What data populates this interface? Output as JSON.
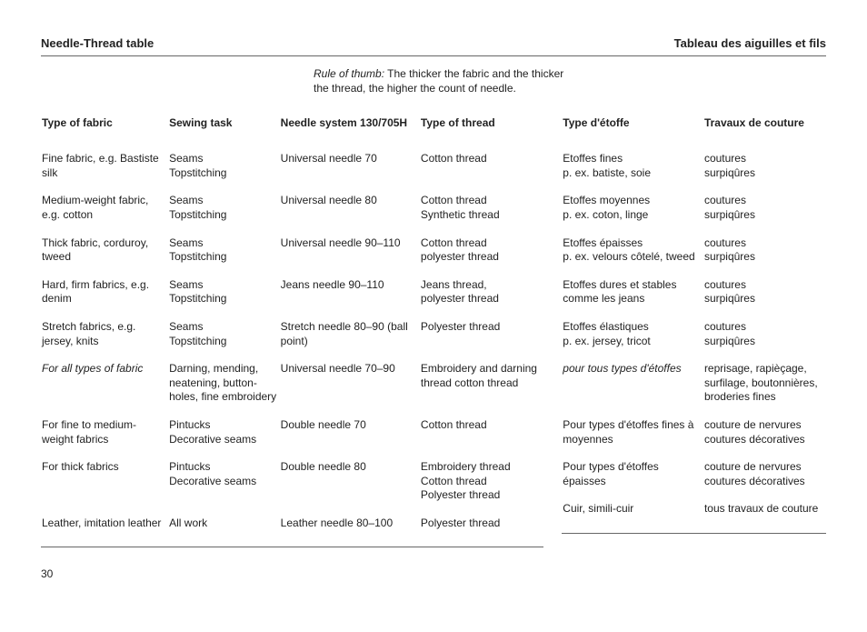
{
  "titles": {
    "left": "Needle-Thread table",
    "right": "Tableau des aiguilles et fils"
  },
  "ruleOfThumb": {
    "label": "Rule of thumb:",
    "text": " The thicker the fabric and the thicker the thread, the higher the count of needle."
  },
  "leftHeaders": {
    "c1": "Type of fabric",
    "c2": "Sewing task",
    "c3": "Needle system 130/705H",
    "c4": "Type of thread"
  },
  "rightHeaders": {
    "c1": "Type d'étoffe",
    "c2": "Travaux de couture"
  },
  "leftRows": [
    {
      "c1": "Fine fabric, e.g. Bastiste silk",
      "c2": "Seams\nTopstitching",
      "c3": "Universal needle 70",
      "c4": "Cotton thread"
    },
    {
      "c1": "Medium-weight fabric, e.g. cotton",
      "c2": "Seams\nTopstitching",
      "c3": "Universal needle 80",
      "c4": "Cotton thread\nSynthetic thread"
    },
    {
      "c1": "Thick fabric, corduroy, tweed",
      "c2": "Seams\nTopstitching",
      "c3": "Universal needle 90–110",
      "c4": "Cotton thread\npolyester thread"
    },
    {
      "c1": "Hard, firm fabrics, e.g. denim",
      "c2": "Seams\nTopstitching",
      "c3": "Jeans needle 90–110",
      "c4": "Jeans thread,\npolyester thread"
    },
    {
      "c1": "Stretch fabrics, e.g. jersey, knits",
      "c2": "Seams\nTopstitching",
      "c3": "Stretch needle 80–90 (ball point)",
      "c4": "Polyester thread"
    },
    {
      "c1": "For all types of fabric",
      "c1italic": true,
      "c2": "Darning, mending, neatening, button-holes, fine embroidery",
      "c3": "Universal needle 70–90",
      "c4": "Embroidery and darning thread cotton thread"
    },
    {
      "c1": "For fine to medium-weight fabrics",
      "c2": "Pintucks\nDecorative seams",
      "c3": "Double needle 70",
      "c4": "Cotton thread"
    },
    {
      "c1": "For thick fabrics",
      "c2": "Pintucks\nDecorative seams",
      "c3": "Double needle 80",
      "c4": "Embroidery thread\nCotton thread\nPolyester thread"
    },
    {
      "c1": "Leather, imitation leather",
      "c2": "All work",
      "c3": "Leather needle 80–100",
      "c4": "Polyester thread"
    }
  ],
  "rightRows": [
    {
      "c1": "Etoffes fines\np. ex. batiste, soie",
      "c2": "coutures\nsurpiqûres"
    },
    {
      "c1": "Etoffes moyennes\np. ex. coton, linge",
      "c2": "coutures\nsurpiqûres"
    },
    {
      "c1": "Etoffes épaisses\np. ex. velours côtelé, tweed",
      "c2": "coutures\nsurpiqûres"
    },
    {
      "c1": "Etoffes dures et stables comme les jeans",
      "c2": "coutures\nsurpiqûres"
    },
    {
      "c1": "Etoffes élastiques\np. ex. jersey, tricot",
      "c2": "coutures\nsurpiqûres"
    },
    {
      "c1": "pour tous types d'étoffes",
      "c1italic": true,
      "c2": "reprisage, rapièçage, surfilage, boutonnières, broderies fines"
    },
    {
      "c1": "Pour types d'étoffes fines à moyennes",
      "c2": "couture de nervures\ncoutures décoratives"
    },
    {
      "c1": "Pour types d'étoffes épaisses",
      "c2": "couture de nervures\ncoutures décoratives"
    },
    {
      "c1": "Cuir, simili-cuir",
      "c2": "tous travaux de couture"
    }
  ],
  "pageNumber": "30"
}
